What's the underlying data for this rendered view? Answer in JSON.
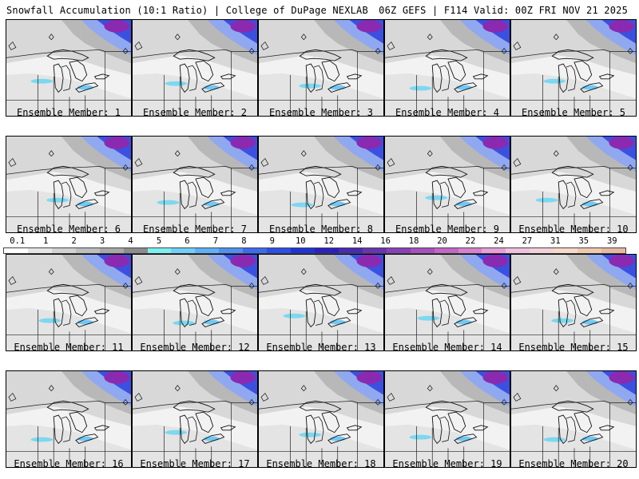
{
  "header": {
    "left": "Snowfall Accumulation (10:1 Ratio) | College of DuPage NEXLAB",
    "right": "06Z GEFS | F114 Valid: 00Z FRI NOV 21 2025"
  },
  "panels": [
    {
      "label": "Ensemble Member: 1"
    },
    {
      "label": "Ensemble Member: 2"
    },
    {
      "label": "Ensemble Member: 3"
    },
    {
      "label": "Ensemble Member: 4"
    },
    {
      "label": "Ensemble Member: 5"
    },
    {
      "label": "Ensemble Member: 6"
    },
    {
      "label": "Ensemble Member: 7"
    },
    {
      "label": "Ensemble Member: 8"
    },
    {
      "label": "Ensemble Member: 9"
    },
    {
      "label": "Ensemble Member: 10"
    },
    {
      "label": "Ensemble Member: 11"
    },
    {
      "label": "Ensemble Member: 12"
    },
    {
      "label": "Ensemble Member: 13"
    },
    {
      "label": "Ensemble Member: 14"
    },
    {
      "label": "Ensemble Member: 15"
    },
    {
      "label": "Ensemble Member: 16"
    },
    {
      "label": "Ensemble Member: 17"
    },
    {
      "label": "Ensemble Member: 18"
    },
    {
      "label": "Ensemble Member: 19"
    },
    {
      "label": "Ensemble Member: 20"
    }
  ],
  "colorbar": {
    "ticks": [
      "0.1",
      "1",
      "2",
      "3",
      "4",
      "5",
      "6",
      "7",
      "8",
      "9",
      "10",
      "12",
      "14",
      "16",
      "18",
      "20",
      "22",
      "24",
      "27",
      "31",
      "35",
      "39"
    ],
    "colors": [
      "#ffffff",
      "#e6e6e6",
      "#d2d2d2",
      "#bebebe",
      "#a8a8a8",
      "#8c8c8c",
      "#7cf0f0",
      "#70d0f8",
      "#60b0f8",
      "#5090f0",
      "#3c6cf0",
      "#2c50e8",
      "#2034d8",
      "#2c20c0",
      "#4a2ab0",
      "#6a34b0",
      "#8a40b8",
      "#a850c0",
      "#c068c8",
      "#d880d0",
      "#e8a0d8",
      "#f0c0e0",
      "#f4d0d8",
      "#f8d8c8",
      "#f0c8b0",
      "#e8b8a0"
    ]
  }
}
